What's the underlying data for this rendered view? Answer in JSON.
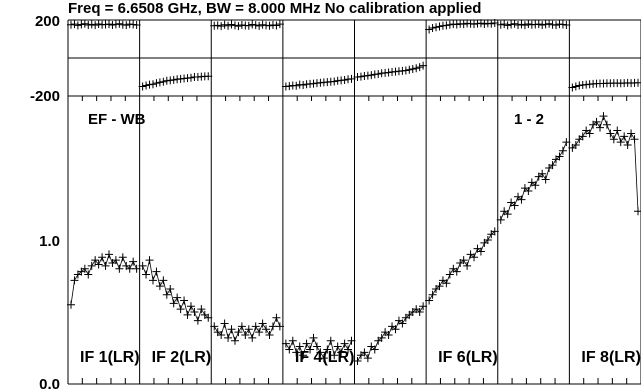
{
  "chart_data": {
    "type": "scatter",
    "title": "Freq = 6.6508 GHz, BW = 8.000 MHz  No calibration applied",
    "baseline_label": "EF - WB",
    "pol_label": "1 - 2",
    "phase_panel": {
      "yticks": [
        "200",
        "-200"
      ],
      "ylim": [
        -200,
        200
      ]
    },
    "amp_panel": {
      "yticks": [
        "1.0",
        "0.0"
      ],
      "ylim": [
        0,
        2.0
      ]
    },
    "panels": [
      {
        "label": "IF 1(LR)",
        "amp": [
          0.55,
          0.72,
          0.76,
          0.78,
          0.8,
          0.76,
          0.82,
          0.86,
          0.83,
          0.88,
          0.82,
          0.9,
          0.84,
          0.86,
          0.8,
          0.88,
          0.82,
          0.8,
          0.85,
          0.8
        ],
        "phase": [
          175,
          178,
          172,
          176,
          180,
          174,
          177,
          173,
          179,
          175,
          176,
          178,
          174,
          177,
          180,
          175,
          173,
          178,
          176,
          174
        ]
      },
      {
        "label": "IF 2(LR)",
        "amp": [
          0.82,
          0.76,
          0.86,
          0.72,
          0.78,
          0.68,
          0.72,
          0.62,
          0.66,
          0.56,
          0.6,
          0.52,
          0.58,
          0.48,
          0.54,
          0.5,
          0.44,
          0.52,
          0.48,
          0.46
        ],
        "phase": [
          -150,
          -145,
          -140,
          -138,
          -132,
          -128,
          -125,
          -120,
          -118,
          -115,
          -112,
          -110,
          -108,
          -106,
          -104,
          -100,
          -100,
          -98,
          -97,
          -96
        ]
      },
      {
        "label": "",
        "amp": [
          0.4,
          0.36,
          0.34,
          0.42,
          0.32,
          0.38,
          0.3,
          0.36,
          0.4,
          0.34,
          0.38,
          0.32,
          0.4,
          0.36,
          0.42,
          0.38,
          0.34,
          0.4,
          0.46,
          0.4
        ],
        "phase": [
          170,
          172,
          168,
          175,
          170,
          176,
          172,
          168,
          174,
          171,
          170,
          176,
          173,
          169,
          175,
          172,
          170,
          174,
          171,
          178
        ]
      },
      {
        "label": "IF 4(LR)",
        "amp": [
          0.28,
          0.24,
          0.3,
          0.22,
          0.26,
          0.2,
          0.28,
          0.24,
          0.32,
          0.26,
          0.22,
          0.18,
          0.24,
          0.3,
          0.2,
          0.26,
          0.22,
          0.28,
          0.24,
          0.3
        ],
        "phase": [
          -150,
          -148,
          -145,
          -146,
          -140,
          -142,
          -138,
          -136,
          -135,
          -132,
          -130,
          -128,
          -127,
          -125,
          -124,
          -120,
          -118,
          -116,
          -112,
          -110
        ]
      },
      {
        "label": "",
        "amp": [
          0.16,
          0.2,
          0.22,
          0.18,
          0.26,
          0.24,
          0.3,
          0.32,
          0.36,
          0.34,
          0.4,
          0.38,
          0.44,
          0.42,
          0.46,
          0.48,
          0.5,
          0.52,
          0.5,
          0.54
        ],
        "phase": [
          -100,
          -98,
          -95,
          -93,
          -90,
          -86,
          -84,
          -80,
          -78,
          -76,
          -74,
          -72,
          -70,
          -68,
          -66,
          -62,
          -58,
          -54,
          -48,
          -40
        ]
      },
      {
        "label": "IF 6(LR)",
        "amp": [
          0.58,
          0.62,
          0.66,
          0.68,
          0.72,
          0.7,
          0.76,
          0.8,
          0.78,
          0.84,
          0.86,
          0.82,
          0.9,
          0.88,
          0.94,
          0.92,
          0.98,
          1.0,
          1.04,
          1.06
        ],
        "phase": [
          150,
          158,
          162,
          166,
          170,
          172,
          175,
          178,
          176,
          180,
          178,
          182,
          180,
          178,
          181,
          183,
          179,
          182,
          180,
          184
        ]
      },
      {
        "label": "",
        "amp": [
          1.14,
          1.2,
          1.18,
          1.26,
          1.24,
          1.3,
          1.28,
          1.36,
          1.34,
          1.4,
          1.38,
          1.44,
          1.46,
          1.42,
          1.5,
          1.52,
          1.56,
          1.58,
          1.62,
          1.68
        ],
        "phase": [
          175,
          178,
          172,
          176,
          180,
          174,
          177,
          173,
          179,
          175,
          176,
          178,
          174,
          177,
          180,
          175,
          173,
          178,
          176,
          174
        ]
      },
      {
        "label": "IF 8(LR)",
        "amp": [
          1.64,
          1.66,
          1.7,
          1.72,
          1.76,
          1.74,
          1.8,
          1.82,
          1.78,
          1.86,
          1.8,
          1.74,
          1.7,
          1.76,
          1.68,
          1.72,
          1.66,
          1.74,
          1.7,
          1.2
        ],
        "phase": [
          -155,
          -150,
          -145,
          -142,
          -140,
          -138,
          -136,
          -135,
          -134,
          -134,
          -133,
          -133,
          -132,
          -132,
          -133,
          -132,
          -131,
          -132,
          -131,
          -130
        ]
      }
    ]
  }
}
